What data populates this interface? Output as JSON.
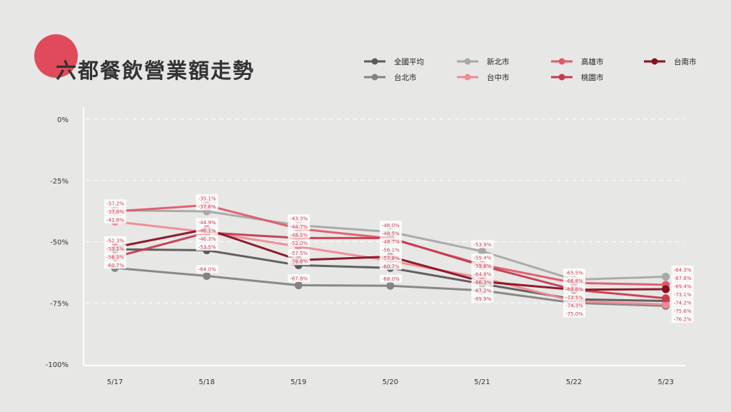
{
  "title": "六都餐飲營業額走勢",
  "chart_data": {
    "type": "line",
    "title": "六都餐飲營業額走勢",
    "categories": [
      "5/17",
      "5/18",
      "5/19",
      "5/20",
      "5/21",
      "5/22",
      "5/23"
    ],
    "y_ticks": [
      "0%",
      "-25%",
      "-50%",
      "-75%",
      "-100%"
    ],
    "ylim": [
      -100,
      0
    ],
    "grid": true,
    "legend_position": "top-right",
    "series": [
      {
        "name": "全國平均",
        "color": "#5a5a5a",
        "values": [
          -53.1,
          -53.5,
          -59.6,
          -60.7,
          -67.2,
          -73.5,
          -74.2
        ]
      },
      {
        "name": "台北市",
        "color": "#838383",
        "values": [
          -60.7,
          -64.0,
          -67.8,
          -68.0,
          -69.9,
          -75.0,
          -76.2
        ]
      },
      {
        "name": "新北市",
        "color": "#a8a8a8",
        "values": [
          -37.2,
          -37.6,
          -43.3,
          -46.0,
          -53.9,
          -65.5,
          -64.3
        ]
      },
      {
        "name": "台中市",
        "color": "#f08a94",
        "values": [
          -41.8,
          -46.1,
          -52.0,
          -57.8,
          -64.8,
          -74.3,
          -75.6
        ]
      },
      {
        "name": "高雄市",
        "color": "#e05a6a",
        "values": [
          -37.6,
          -35.1,
          -44.7,
          -48.7,
          -59.4,
          -66.8,
          -67.6
        ]
      },
      {
        "name": "桃園市",
        "color": "#c83a4e",
        "values": [
          -56.3,
          -46.3,
          -48.5,
          -48.5,
          -59.8,
          -69.6,
          -73.1
        ]
      },
      {
        "name": "台南市",
        "color": "#8a1020",
        "values": [
          -52.3,
          -44.9,
          -57.5,
          -56.1,
          -66.3,
          -69.6,
          -69.4
        ]
      }
    ],
    "labels": [
      {
        "text": "-37.2%",
        "i": 0,
        "v": -37.2
      },
      {
        "text": "-37.6%",
        "i": 0,
        "v": -37.6
      },
      {
        "text": "-41.8%",
        "i": 0,
        "v": -41.8
      },
      {
        "text": "-52.3%",
        "i": 0,
        "v": -52.3
      },
      {
        "text": "-53.1%",
        "i": 0,
        "v": -53.1
      },
      {
        "text": "-56.3%",
        "i": 0,
        "v": -56.3
      },
      {
        "text": "-60.7%",
        "i": 0,
        "v": -60.7
      },
      {
        "text": "-35.1%",
        "i": 1,
        "v": -35.1
      },
      {
        "text": "-37.6%",
        "i": 1,
        "v": -37.6
      },
      {
        "text": "-44.9%",
        "i": 1,
        "v": -44.9
      },
      {
        "text": "-46.3%",
        "i": 1,
        "v": -46.3
      },
      {
        "text": "-46.1%",
        "i": 1,
        "v": -46.1
      },
      {
        "text": "-53.5%",
        "i": 1,
        "v": -53.5
      },
      {
        "text": "-64.0%",
        "i": 1,
        "v": -64.0
      },
      {
        "text": "-43.3%",
        "i": 2,
        "v": -43.3
      },
      {
        "text": "-44.7%",
        "i": 2,
        "v": -44.7
      },
      {
        "text": "-48.5%",
        "i": 2,
        "v": -48.5
      },
      {
        "text": "-52.0%",
        "i": 2,
        "v": -52.0
      },
      {
        "text": "-57.5%",
        "i": 2,
        "v": -57.5
      },
      {
        "text": "-59.6%",
        "i": 2,
        "v": -59.6
      },
      {
        "text": "-67.8%",
        "i": 2,
        "v": -67.8
      },
      {
        "text": "-46.0%",
        "i": 3,
        "v": -46.0
      },
      {
        "text": "-48.5%",
        "i": 3,
        "v": -48.5
      },
      {
        "text": "-48.7%",
        "i": 3,
        "v": -48.7
      },
      {
        "text": "-56.1%",
        "i": 3,
        "v": -56.1
      },
      {
        "text": "-57.8%",
        "i": 3,
        "v": -57.8
      },
      {
        "text": "-60.7%",
        "i": 3,
        "v": -60.7
      },
      {
        "text": "-68.0%",
        "i": 3,
        "v": -68.0
      },
      {
        "text": "-53.9%",
        "i": 4,
        "v": -53.9
      },
      {
        "text": "-59.4%",
        "i": 4,
        "v": -59.4
      },
      {
        "text": "-59.8%",
        "i": 4,
        "v": -59.8
      },
      {
        "text": "-64.8%",
        "i": 4,
        "v": -64.8
      },
      {
        "text": "-66.3%",
        "i": 4,
        "v": -66.3
      },
      {
        "text": "-67.2%",
        "i": 4,
        "v": -67.2
      },
      {
        "text": "-69.9%",
        "i": 4,
        "v": -69.9
      },
      {
        "text": "-65.5%",
        "i": 5,
        "v": -65.5
      },
      {
        "text": "-66.8%",
        "i": 5,
        "v": -66.8
      },
      {
        "text": "-69.6%",
        "i": 5,
        "v": -69.6
      },
      {
        "text": "-73.5%",
        "i": 5,
        "v": -73.5
      },
      {
        "text": "-74.3%",
        "i": 5,
        "v": -74.3
      },
      {
        "text": "-75.0%",
        "i": 5,
        "v": -75.0
      },
      {
        "text": "-64.3%",
        "i": 6,
        "v": -64.3
      },
      {
        "text": "-67.6%",
        "i": 6,
        "v": -67.6
      },
      {
        "text": "-69.4%",
        "i": 6,
        "v": -69.4
      },
      {
        "text": "-73.1%",
        "i": 6,
        "v": -73.1
      },
      {
        "text": "-74.2%",
        "i": 6,
        "v": -74.2
      },
      {
        "text": "-75.6%",
        "i": 6,
        "v": -75.6
      },
      {
        "text": "-76.2%",
        "i": 6,
        "v": -76.2
      }
    ]
  }
}
